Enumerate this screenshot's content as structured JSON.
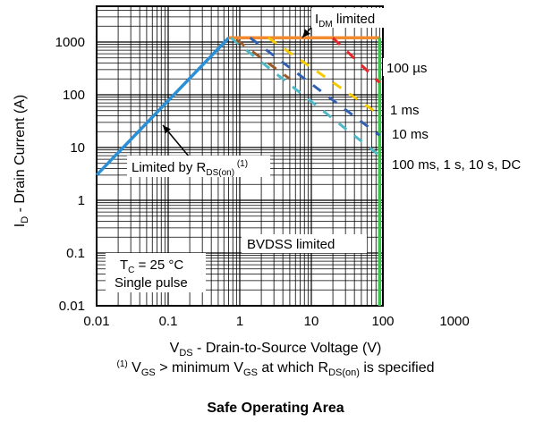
{
  "chart_data": {
    "type": "line",
    "caption": "Safe Operating Area",
    "x_scale": "log",
    "y_scale": "log",
    "xlim": [
      0.01,
      1000
    ],
    "ylim": [
      0.01,
      10000
    ],
    "grid": true,
    "x_tick_labels": [
      "0.01",
      "0.1",
      "1",
      "10",
      "100",
      "1000"
    ],
    "y_tick_labels": [
      "0.01",
      "0.1",
      "1",
      "10",
      "100",
      "1000"
    ],
    "xlabel": {
      "main": "V",
      "sub": "DS",
      "rest": " - Drain-to-Source Voltage (V)"
    },
    "ylabel": {
      "main": "I",
      "sub": "D",
      "rest": " - Drain Current (A)"
    },
    "footnote": {
      "sup": "(1)",
      "v": " V",
      "gs1": "GS",
      "mid": " > minimum V",
      "gs2": "GS",
      "at": " at which R",
      "ds": "DS(on)",
      "end": " is specified"
    },
    "colors": {
      "rds_limit": "#2a8fd6",
      "idm_limit": "#f28a30",
      "bvdss_limit": "#2ecc40",
      "pulse_100us": "#e8262b",
      "pulse_1ms": "#f7c900",
      "pulse_10ms": "#3060b0",
      "pulse_dc": "#4fb9c8",
      "pulse_brown": "#9a5a2a"
    },
    "series": [
      {
        "key": "rds_limit",
        "style": "solid",
        "points": [
          [
            0.01,
            3
          ],
          [
            0.7,
            1200
          ]
        ]
      },
      {
        "key": "idm_limit",
        "style": "solid",
        "points": [
          [
            0.7,
            1200
          ],
          [
            90,
            1200
          ]
        ]
      },
      {
        "key": "bvdss_limit",
        "style": "solid",
        "points": [
          [
            90,
            0.01
          ],
          [
            90,
            1200
          ]
        ]
      },
      {
        "key": "pulse_100us",
        "style": "dashed",
        "points": [
          [
            20,
            1200
          ],
          [
            90,
            170
          ]
        ]
      },
      {
        "key": "pulse_1ms",
        "style": "dashed",
        "points": [
          [
            2.5,
            1200
          ],
          [
            90,
            42
          ]
        ]
      },
      {
        "key": "pulse_10ms",
        "style": "dashed",
        "points": [
          [
            1.4,
            1200
          ],
          [
            90,
            17
          ]
        ]
      },
      {
        "key": "pulse_dc",
        "style": "dashed",
        "points": [
          [
            0.75,
            1200
          ],
          [
            90,
            7
          ]
        ]
      },
      {
        "key": "pulse_brown",
        "style": "dashed",
        "points": [
          [
            0.9,
            1100
          ],
          [
            5,
            200
          ]
        ]
      }
    ],
    "annotations": [
      {
        "id": "idm",
        "main": "I",
        "sub": "DM",
        "rest": " limited"
      },
      {
        "id": "us100",
        "text": "100 µs"
      },
      {
        "id": "ms1",
        "text": "1 ms"
      },
      {
        "id": "ms10",
        "text": "10 ms"
      },
      {
        "id": "dc",
        "text": "100 ms, 1 s, 10 s, DC"
      },
      {
        "id": "rds",
        "main": "Limited by R",
        "sub": "DS(on)",
        "sup": " (1)"
      },
      {
        "id": "bvdss",
        "text": "BVDSS limited"
      },
      {
        "id": "tc",
        "main": "T",
        "sub": "C",
        "rest": " = 25 °C"
      },
      {
        "id": "single",
        "text": "Single pulse"
      }
    ]
  }
}
